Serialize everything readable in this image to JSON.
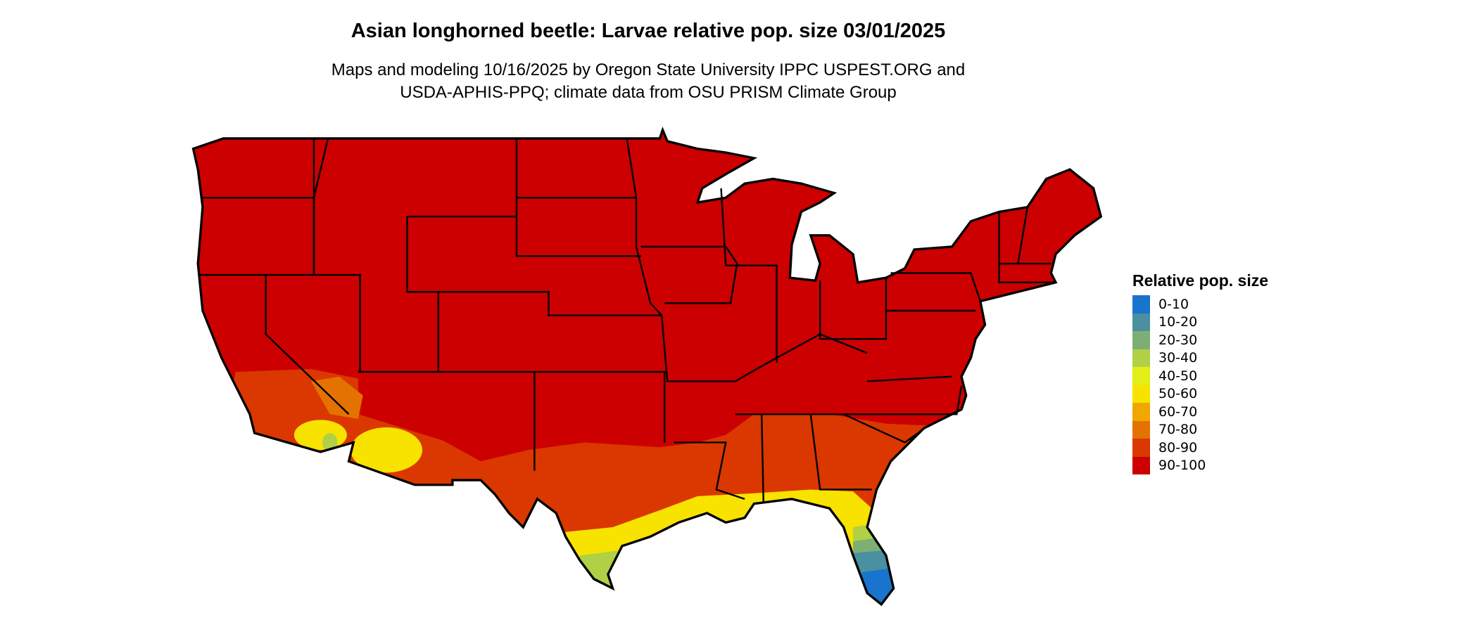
{
  "header": {
    "title": "Asian longhorned beetle: Larvae relative pop. size 03/01/2025",
    "subtitle_line1": "Maps and modeling 10/16/2025 by Oregon State University IPPC USPEST.ORG and",
    "subtitle_line2": "USDA-APHIS-PPQ; climate data from OSU PRISM Climate Group"
  },
  "legend": {
    "title": "Relative pop. size",
    "items": [
      {
        "label": "0-10",
        "color": "#1874CD"
      },
      {
        "label": "10-20",
        "color": "#4A90A0"
      },
      {
        "label": "20-30",
        "color": "#7DAF74"
      },
      {
        "label": "30-40",
        "color": "#B0D045"
      },
      {
        "label": "40-50",
        "color": "#E3EE16"
      },
      {
        "label": "50-60",
        "color": "#F7E200"
      },
      {
        "label": "60-70",
        "color": "#EFA800"
      },
      {
        "label": "70-80",
        "color": "#E47200"
      },
      {
        "label": "80-90",
        "color": "#DA3800"
      },
      {
        "label": "90-100",
        "color": "#CC0000"
      }
    ]
  },
  "map": {
    "region": "Contiguous United States",
    "dominant_class": "90-100"
  }
}
